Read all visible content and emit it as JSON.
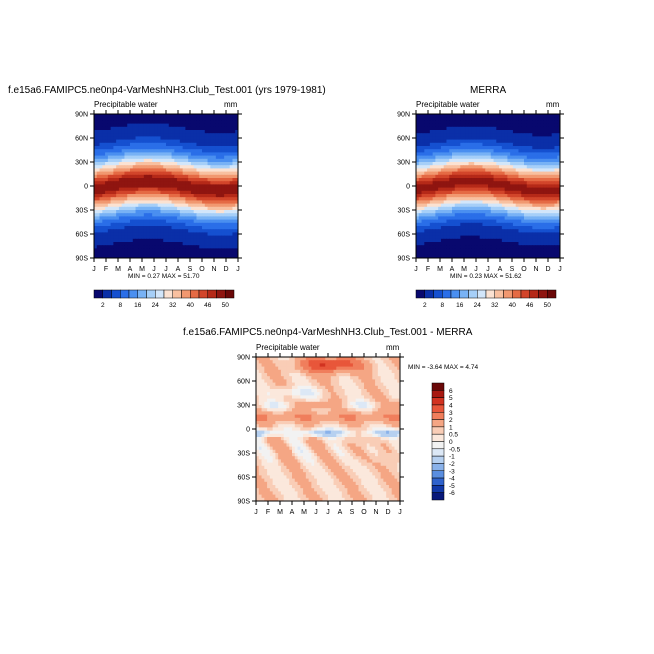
{
  "chart_data": [
    {
      "type": "heatmap",
      "title": "f.e15a6.FAMIPC5.ne0np4-VarMeshNH3.Club_Test.001 (yrs 1979-1981)",
      "subtitle_left": "Precipitable water",
      "units": "mm",
      "x_ticks": [
        "J",
        "F",
        "M",
        "A",
        "M",
        "J",
        "J",
        "A",
        "S",
        "O",
        "N",
        "D",
        "J"
      ],
      "y_ticks": [
        "90N",
        "60N",
        "30N",
        "0",
        "30S",
        "60S",
        "90S"
      ],
      "stats": "MIN =   0.27 MAX = 51.70",
      "colorbar_labels": [
        "2",
        "8",
        "16",
        "24",
        "32",
        "40",
        "46",
        "50"
      ],
      "min": 0.27,
      "max": 51.7
    },
    {
      "type": "heatmap",
      "title": "MERRA",
      "subtitle_left": "Precipitable water",
      "units": "mm",
      "x_ticks": [
        "J",
        "F",
        "M",
        "A",
        "M",
        "J",
        "J",
        "A",
        "S",
        "O",
        "N",
        "D",
        "J"
      ],
      "y_ticks": [
        "90N",
        "60N",
        "30N",
        "0",
        "30S",
        "60S",
        "90S"
      ],
      "stats": "MIN =   0.23 MAX = 51.62",
      "colorbar_labels": [
        "2",
        "8",
        "16",
        "24",
        "32",
        "40",
        "46",
        "50"
      ],
      "min": 0.23,
      "max": 51.62
    },
    {
      "type": "heatmap",
      "title": "f.e15a6.FAMIPC5.ne0np4-VarMeshNH3.Club_Test.001 - MERRA",
      "subtitle_left": "Precipitable water",
      "units": "mm",
      "x_ticks": [
        "J",
        "F",
        "M",
        "A",
        "M",
        "J",
        "J",
        "A",
        "S",
        "O",
        "N",
        "D",
        "J"
      ],
      "y_ticks": [
        "90N",
        "60N",
        "30N",
        "0",
        "30S",
        "60S",
        "90S"
      ],
      "stats": "MIN =  -3.64 MAX =   4.74",
      "colorbar_labels": [
        "6",
        "5",
        "4",
        "3",
        "2",
        "1",
        "0.5",
        "0",
        "-0.5",
        "-1",
        "-2",
        "-3",
        "-4",
        "-5",
        "-6"
      ],
      "min": -3.64,
      "max": 4.74
    }
  ],
  "colors": {
    "seq": [
      "#08086e",
      "#0a2fa8",
      "#1550d0",
      "#2a6ee8",
      "#4a8ff0",
      "#78b2f5",
      "#a6cff8",
      "#d2e6fa",
      "#fbe2d2",
      "#f8c0a0",
      "#f19870",
      "#e56a44",
      "#d2452a",
      "#b52918",
      "#8f1510",
      "#6a0808"
    ],
    "div": [
      "#6a0808",
      "#a81810",
      "#d23220",
      "#e8563a",
      "#f07e5c",
      "#f5a684",
      "#f9cdb6",
      "#fbe8dc",
      "#f2f2f2",
      "#dce8f6",
      "#b6d0f0",
      "#8ab2ea",
      "#5a8ee0",
      "#2f62cc",
      "#1138a8",
      "#08187a"
    ]
  }
}
